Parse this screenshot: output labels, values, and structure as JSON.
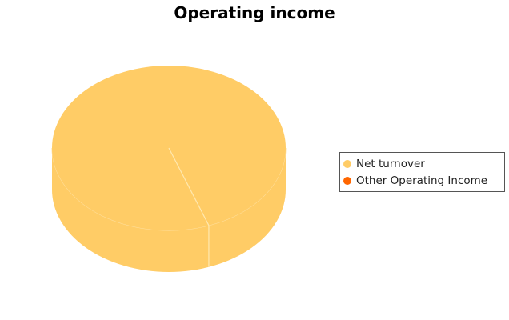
{
  "chart_data": {
    "type": "pie",
    "style": "3d",
    "title": "Operating income",
    "categories": [
      "Net turnover",
      "Other Operating Income"
    ],
    "values": [
      100,
      0
    ],
    "colors": [
      "#FFCC66",
      "#FF6600"
    ],
    "legend_position": "right"
  }
}
